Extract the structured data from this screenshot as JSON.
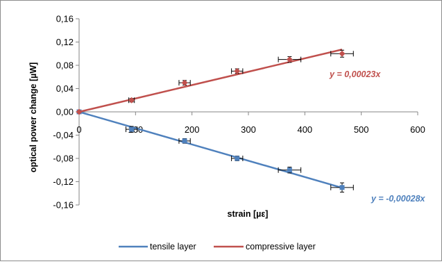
{
  "chart_data": {
    "type": "scatter",
    "xlabel": "strain [µε]",
    "ylabel": "optical power change [µW]",
    "xlim": [
      0,
      600
    ],
    "ylim": [
      -0.16,
      0.16
    ],
    "x_ticks": [
      "0",
      "100",
      "200",
      "300",
      "400",
      "500",
      "600"
    ],
    "y_ticks": [
      "0,16",
      "0,12",
      "0,08",
      "0,04",
      "0,00",
      "-0,04",
      "-0,08",
      "-0,12",
      "-0,16"
    ],
    "grid": false,
    "legend_position": "bottom",
    "series": [
      {
        "name": "tensile layer",
        "color": "#4f81bd",
        "marker": "square",
        "x": [
          0,
          93,
          187,
          280,
          373,
          466
        ],
        "y": [
          0.0,
          -0.03,
          -0.05,
          -0.08,
          -0.1,
          -0.13
        ],
        "x_error": [
          0,
          10,
          10,
          10,
          20,
          20
        ],
        "y_error": [
          0,
          0.005,
          0.004,
          0.004,
          0.005,
          0.008
        ],
        "trendline": {
          "slope": -0.00028,
          "x_end": 466,
          "label": "y = -0,00028x"
        }
      },
      {
        "name": "compressive layer",
        "color": "#c0504d",
        "marker": "diamond",
        "x": [
          0,
          93,
          187,
          280,
          373,
          466
        ],
        "y": [
          0.0,
          0.02,
          0.05,
          0.07,
          0.09,
          0.1
        ],
        "x_error": [
          0,
          5,
          10,
          10,
          20,
          20
        ],
        "y_error": [
          0,
          0.003,
          0.004,
          0.004,
          0.005,
          0.006
        ],
        "trendline": {
          "slope": 0.00023,
          "x_end": 466,
          "label": "y = 0,00023x"
        }
      }
    ]
  }
}
